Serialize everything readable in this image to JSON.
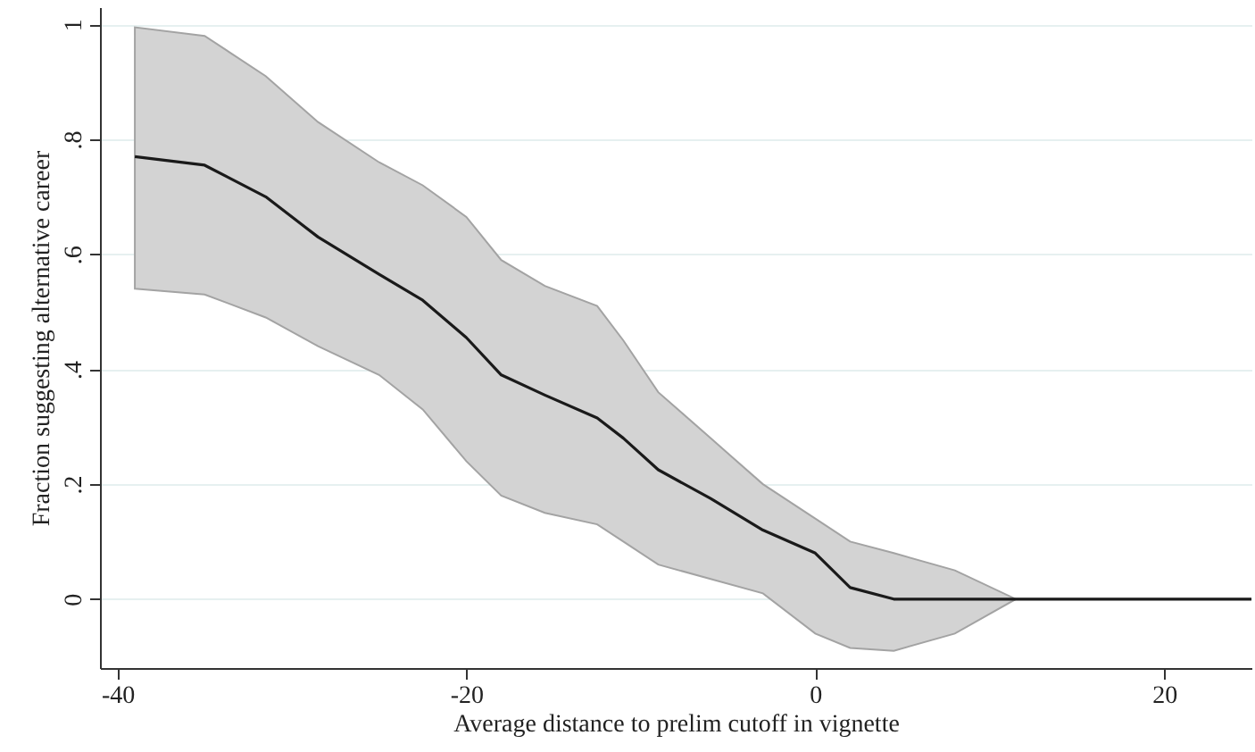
{
  "chart_data": {
    "type": "line",
    "xlabel": "Average distance to prelim cutoff in vignette",
    "ylabel": "Fraction suggesting alternative career",
    "x": [
      -39,
      -35,
      -31.5,
      -28.5,
      -25,
      -22.5,
      -20,
      -18,
      -15.5,
      -12.5,
      -11,
      -9,
      -6,
      -3,
      0,
      2,
      4.5,
      8,
      11.5,
      25
    ],
    "series": [
      {
        "color": "#1a1a1a",
        "values": [
          0.77,
          0.755,
          0.7,
          0.63,
          0.565,
          0.52,
          0.455,
          0.39,
          0.355,
          0.315,
          0.28,
          0.225,
          0.175,
          0.12,
          0.08,
          0.02,
          0,
          0,
          0,
          0
        ],
        "upper": [
          0.995,
          0.98,
          0.91,
          0.83,
          0.76,
          0.72,
          0.665,
          0.59,
          0.545,
          0.51,
          0.45,
          0.36,
          0.28,
          0.2,
          0.14,
          0.1,
          0.08,
          0.05,
          0,
          0
        ],
        "lower": [
          0.54,
          0.53,
          0.49,
          0.44,
          0.39,
          0.33,
          0.24,
          0.18,
          0.15,
          0.13,
          0.1,
          0.06,
          0.035,
          0.01,
          -0.06,
          -0.085,
          -0.09,
          -0.06,
          0,
          0
        ]
      }
    ],
    "xlim": [
      -41,
      25
    ],
    "xticks": [
      -40,
      -20,
      0,
      20
    ],
    "ylim": [
      -0.12,
      1.03
    ],
    "yticks": [
      0,
      {
        "value": 0.2,
        "label": ".2"
      },
      {
        "value": 0.4,
        "label": ".4"
      },
      {
        "value": 0.6,
        "label": ".6"
      },
      {
        "value": 0.8,
        "label": ".8"
      },
      1
    ],
    "grid": "y",
    "marker": "none",
    "line_style": "solid"
  }
}
